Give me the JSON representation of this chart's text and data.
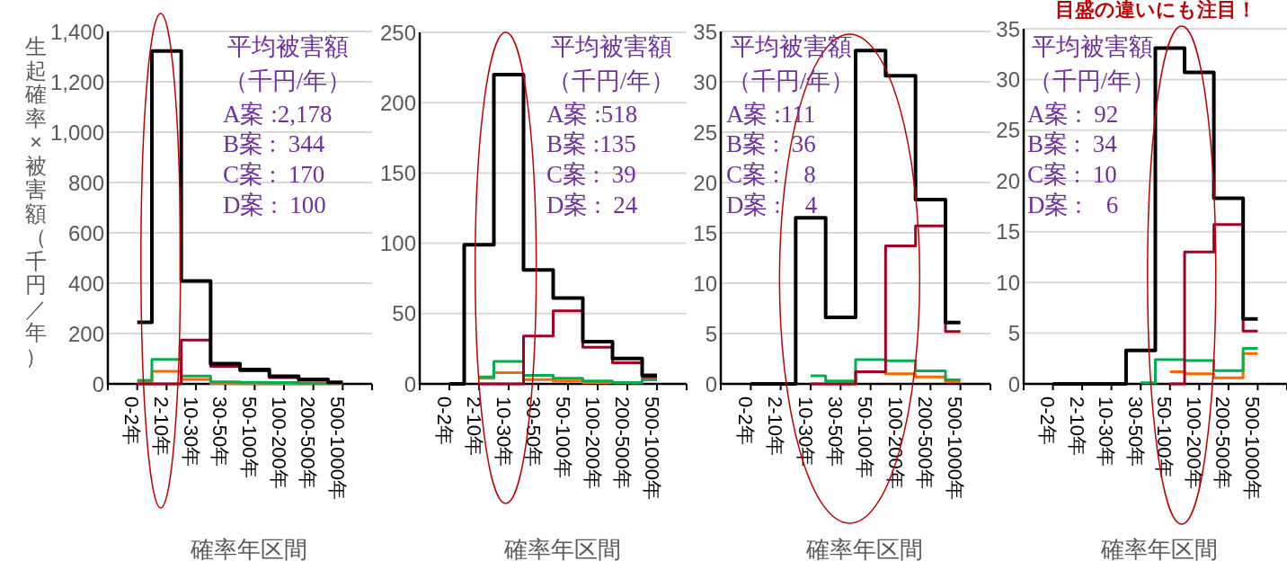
{
  "chart_data": [
    {
      "type": "step",
      "categories": [
        "0-2年",
        "2-10年",
        "10-30年",
        "30-50年",
        "50-100年",
        "100-200年",
        "200-500年",
        "500-1000年"
      ],
      "ylim": [
        0,
        1400
      ],
      "yticks": [
        0,
        200,
        400,
        600,
        800,
        {
          "value": 1000,
          "label": "1,000"
        },
        {
          "value": 1200,
          "label": "1,200"
        },
        {
          "value": 1400,
          "label": "1,400"
        }
      ],
      "grid": "y",
      "ylabel": "生起確率×被害額（千円／年）",
      "xlabel": "確率年区間",
      "annotations": [
        "平均被害額",
        "（千円/年）",
        "A案 :2,178",
        "B案 :  344",
        "C案 :  170",
        "D案 :  100"
      ],
      "series": [
        {
          "color": "#000000",
          "values": [
            245,
            1322,
            409,
            80,
            57,
            30,
            18,
            6
          ]
        },
        {
          "color": "#a50021",
          "values": [
            0,
            0,
            174,
            70,
            52,
            25,
            14,
            5
          ]
        },
        {
          "color": "#00b050",
          "values": [
            14,
            97,
            31,
            8,
            6,
            5,
            3,
            2
          ]
        },
        {
          "color": "#ff6600",
          "values": [
            6,
            50,
            18,
            2,
            1,
            1,
            1,
            1
          ]
        }
      ]
    },
    {
      "type": "step",
      "categories": [
        "0-2年",
        "2-10年",
        "10-30年",
        "30-50年",
        "50-100年",
        "100-200年",
        "200-500年",
        "500-1000年"
      ],
      "ylim": [
        0,
        250
      ],
      "yticks": [
        0,
        50,
        100,
        150,
        200,
        250
      ],
      "grid": "y",
      "xlabel": "確率年区間",
      "annotations": [
        "平均被害額",
        "（千円/年）",
        "A案 :518",
        "B案 :135",
        "C案 :  39",
        "D案 :  24"
      ],
      "series": [
        {
          "color": "#000000",
          "values": [
            0,
            99,
            220,
            81,
            61,
            30,
            18,
            6
          ]
        },
        {
          "color": "#a50021",
          "values": [
            null,
            0,
            0,
            34,
            52,
            26,
            15,
            5
          ]
        },
        {
          "color": "#00b050",
          "values": [
            null,
            5,
            16,
            6,
            4,
            2,
            1,
            3
          ]
        },
        {
          "color": "#ff6600",
          "values": [
            null,
            4,
            8,
            3,
            2,
            1,
            1,
            3
          ]
        }
      ]
    },
    {
      "type": "step",
      "categories": [
        "0-2年",
        "2-10年",
        "10-30年",
        "30-50年",
        "50-100年",
        "100-200年",
        "200-500年",
        "500-1000年"
      ],
      "ylim": [
        0,
        35
      ],
      "yticks": [
        0,
        5,
        10,
        15,
        20,
        25,
        30,
        35
      ],
      "grid": "y",
      "xlabel": "確率年区間",
      "annotations": [
        "平均被害額",
        "（千円/年）",
        "A案 :111",
        "B案 :  36",
        "C案 :    8",
        "D案 :    4"
      ],
      "series": [
        {
          "color": "#000000",
          "values": [
            0,
            0,
            16.5,
            6.6,
            33.1,
            30.6,
            18.3,
            6.1
          ]
        },
        {
          "color": "#a50021",
          "values": [
            null,
            null,
            0,
            0,
            1.2,
            13.7,
            15.7,
            5.2
          ]
        },
        {
          "color": "#00b050",
          "values": [
            null,
            null,
            0.8,
            0.3,
            2.4,
            2.3,
            1.3,
            0.4
          ]
        },
        {
          "color": "#ff6600",
          "values": [
            null,
            null,
            null,
            0,
            1.2,
            1.0,
            0.7,
            0.2
          ]
        }
      ]
    },
    {
      "type": "step",
      "title": "目盛の違いにも注目！",
      "categories": [
        "0-2年",
        "2-10年",
        "10-30年",
        "30-50年",
        "50-100年",
        "100-200年",
        "200-500年",
        "500-1000年"
      ],
      "ylim": [
        0,
        35
      ],
      "yticks": [
        0,
        5,
        10,
        15,
        20,
        25,
        30,
        35
      ],
      "grid": "y",
      "xlabel": "確率年区間",
      "annotations": [
        "平均被害額",
        "（千円/年）",
        "A案 :  92",
        "B案 :  34",
        "C案 :  10",
        "D案 :    6"
      ],
      "series": [
        {
          "color": "#000000",
          "values": [
            0,
            0,
            0,
            3.3,
            33.1,
            30.7,
            18.3,
            6.4
          ]
        },
        {
          "color": "#a50021",
          "values": [
            null,
            null,
            null,
            null,
            0,
            13.0,
            15.7,
            5.2
          ]
        },
        {
          "color": "#00b050",
          "values": [
            null,
            null,
            null,
            0.1,
            2.4,
            2.3,
            1.3,
            3.5
          ]
        },
        {
          "color": "#ff6600",
          "values": [
            null,
            null,
            null,
            null,
            1.2,
            1.0,
            0.6,
            3.0
          ]
        }
      ]
    }
  ]
}
